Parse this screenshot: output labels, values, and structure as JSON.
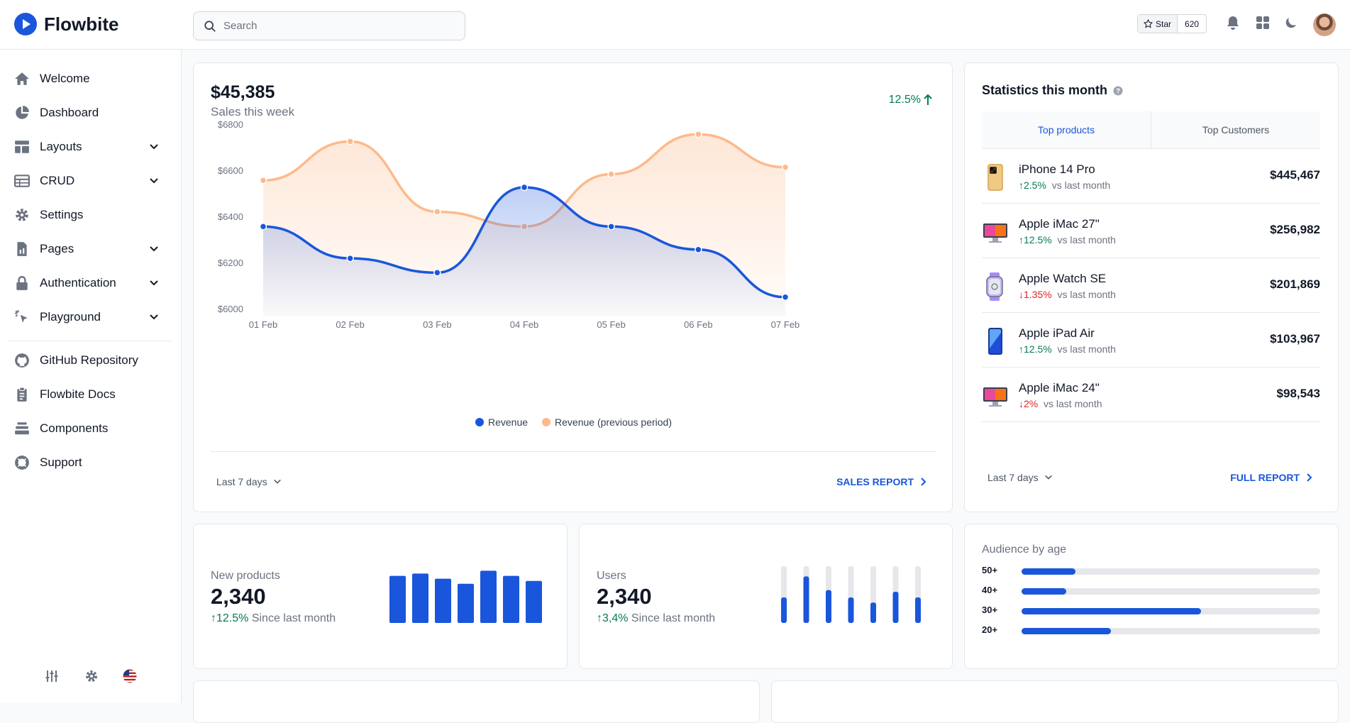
{
  "app": {
    "name": "Flowbite"
  },
  "search": {
    "placeholder": "Search"
  },
  "github": {
    "star_label": "Star",
    "star_count": "620"
  },
  "sidebar": {
    "items": [
      {
        "label": "Welcome",
        "icon": "home-icon"
      },
      {
        "label": "Dashboard",
        "icon": "pie-chart-icon"
      },
      {
        "label": "Layouts",
        "icon": "layout-icon",
        "expandable": true
      },
      {
        "label": "CRUD",
        "icon": "table-icon",
        "expandable": true
      },
      {
        "label": "Settings",
        "icon": "gear-icon"
      },
      {
        "label": "Pages",
        "icon": "document-icon",
        "expandable": true
      },
      {
        "label": "Authentication",
        "icon": "lock-icon",
        "expandable": true
      },
      {
        "label": "Playground",
        "icon": "cursor-click-icon",
        "expandable": true
      }
    ],
    "links": [
      {
        "label": "GitHub Repository",
        "icon": "github-icon"
      },
      {
        "label": "Flowbite Docs",
        "icon": "clipboard-icon"
      },
      {
        "label": "Components",
        "icon": "stack-icon"
      },
      {
        "label": "Support",
        "icon": "lifebuoy-icon"
      }
    ]
  },
  "sales": {
    "amount": "$45,385",
    "subtitle": "Sales this week",
    "change": "12.5%",
    "range_label": "Last 7 days",
    "report_link": "SALES REPORT"
  },
  "chart_data": {
    "type": "area",
    "x": [
      "01 Feb",
      "02 Feb",
      "03 Feb",
      "04 Feb",
      "05 Feb",
      "06 Feb",
      "07 Feb"
    ],
    "ytick_labels": [
      "$6800",
      "$6600",
      "$6400",
      "$6200",
      "$6000"
    ],
    "ylim": [
      6000,
      6800
    ],
    "series": [
      {
        "name": "Revenue",
        "color": "#1a56db",
        "values": [
          6356,
          6218,
          6156,
          6526,
          6356,
          6256,
          6050
        ]
      },
      {
        "name": "Revenue (previous period)",
        "color": "#fdba8c",
        "values": [
          6556,
          6725,
          6420,
          6356,
          6583,
          6756,
          6613
        ]
      }
    ],
    "legend": "bottom-center"
  },
  "stats": {
    "title": "Statistics this month",
    "tabs": [
      "Top products",
      "Top Customers"
    ],
    "active_tab": 0,
    "products": [
      {
        "name": "iPhone 14 Pro",
        "dir": "up",
        "change": "2.5%",
        "note": "vs last month",
        "value": "$445,467"
      },
      {
        "name": "Apple iMac 27\"",
        "dir": "up",
        "change": "12.5%",
        "note": "vs last month",
        "value": "$256,982"
      },
      {
        "name": "Apple Watch SE",
        "dir": "down",
        "change": "1.35%",
        "note": "vs last month",
        "value": "$201,869"
      },
      {
        "name": "Apple iPad Air",
        "dir": "up",
        "change": "12.5%",
        "note": "vs last month",
        "value": "$103,967"
      },
      {
        "name": "Apple iMac 24\"",
        "dir": "down",
        "change": "2%",
        "note": "vs last month",
        "value": "$98,543"
      }
    ],
    "range_label": "Last 7 days",
    "report_link": "FULL REPORT"
  },
  "new_products": {
    "title": "New products",
    "value": "2,340",
    "change": "12.5%",
    "note": "Since last month",
    "bars": [
      0.83,
      0.87,
      0.78,
      0.69,
      0.92,
      0.83,
      0.74
    ]
  },
  "users": {
    "title": "Users",
    "value": "2,340",
    "change": "3,4%",
    "note": "Since last month",
    "bars": [
      0.45,
      0.82,
      0.58,
      0.45,
      0.36,
      0.55,
      0.45
    ]
  },
  "audience": {
    "title": "Audience by age",
    "rows": [
      {
        "label": "50+",
        "fraction": 0.18
      },
      {
        "label": "40+",
        "fraction": 0.15
      },
      {
        "label": "30+",
        "fraction": 0.6
      },
      {
        "label": "20+",
        "fraction": 0.3
      }
    ]
  },
  "colors": {
    "accent": "#1a56db",
    "accent_light": "#fdba8c",
    "up": "#057a55",
    "down": "#e02424"
  }
}
